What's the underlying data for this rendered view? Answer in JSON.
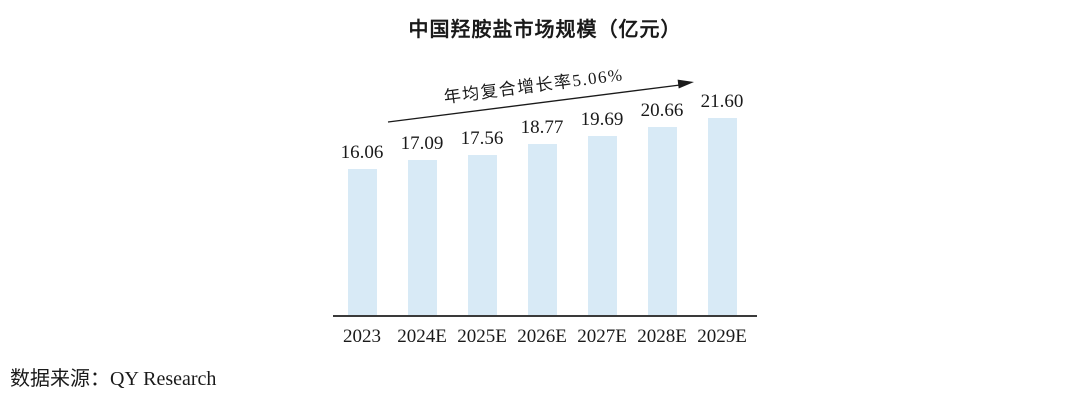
{
  "title": "中国羟胺盐市场规模（亿元）",
  "annotation": {
    "cagr_label": "年均复合增长率5.06%"
  },
  "source": "数据来源：QY Research",
  "colors": {
    "bar_fill": "#D8EAF6",
    "axis_line": "#3A3A3A",
    "arrow": "#1A1A1A",
    "text": "#1A1A1A",
    "background": "#FFFFFF"
  },
  "chart_data": {
    "type": "bar",
    "title": "中国羟胺盐市场规模（亿元）",
    "categories": [
      "2023",
      "2024E",
      "2025E",
      "2026E",
      "2027E",
      "2028E",
      "2029E"
    ],
    "values": [
      16.06,
      17.09,
      17.56,
      18.77,
      19.69,
      20.66,
      21.6
    ],
    "value_labels": [
      "16.06",
      "17.09",
      "17.56",
      "18.77",
      "19.69",
      "20.66",
      "21.60"
    ],
    "xlabel": "",
    "ylabel": "",
    "ylim": [
      0,
      24
    ],
    "grid": false,
    "legend_position": "none",
    "annotation": "年均复合增长率5.06%",
    "annotation_type": "cagr-arrow-up-right",
    "data_labels_shown": true,
    "y_axis_shown": false
  }
}
